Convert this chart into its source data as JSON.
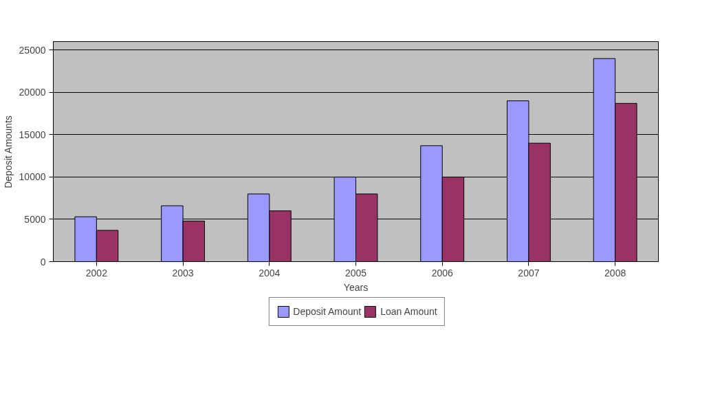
{
  "chart_data": {
    "type": "bar",
    "xlabel": "Years",
    "ylabel": "Deposit Amounts",
    "categories": [
      "2002",
      "2003",
      "2004",
      "2005",
      "2006",
      "2007",
      "2008"
    ],
    "series": [
      {
        "name": "Deposit Amount",
        "color": "#9999ff",
        "values": [
          5300,
          6600,
          8000,
          10000,
          13700,
          19000,
          24000
        ]
      },
      {
        "name": "Loan Amount",
        "color": "#993366",
        "values": [
          3700,
          4800,
          6000,
          8000,
          10000,
          14000,
          18700
        ]
      }
    ],
    "ylim": [
      0,
      26000
    ],
    "yticks": [
      0,
      5000,
      10000,
      15000,
      20000,
      25000
    ],
    "grid": "y",
    "legend": "bottom"
  }
}
